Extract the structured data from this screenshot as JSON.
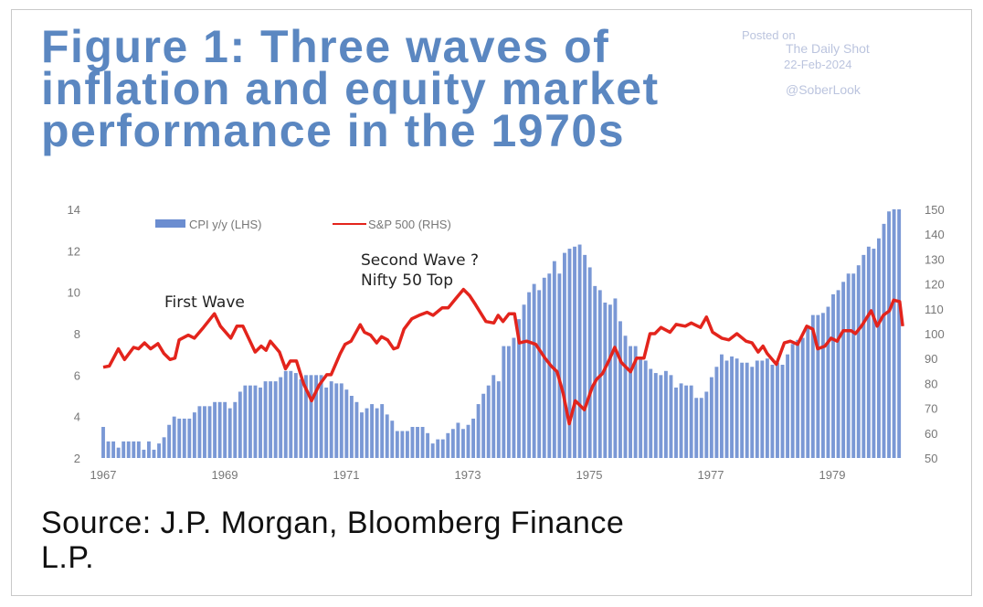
{
  "title_lines": [
    "Figure 1: Three waves of",
    "inflation and equity market",
    "performance in the 1970s"
  ],
  "watermark": {
    "line1": "Posted on",
    "line2": "The Daily Shot",
    "line3": "22-Feb-2024",
    "line4": "@SoberLook"
  },
  "source_lines": [
    "Source: J.P. Morgan, Bloomberg Finance",
    "L.P."
  ],
  "colors": {
    "title": "#5b87c1",
    "cpi_bar": "#6b8dd0",
    "sp500_line": "#e3241c"
  },
  "chart_data": {
    "type": "bar+line",
    "legend": [
      "CPI y/y (LHS)",
      "S&P 500 (RHS)"
    ],
    "legend_position": "top-center",
    "annotations": [
      "First Wave",
      "Second Wave ?",
      "Nifty 50 Top"
    ],
    "x_ticks": [
      "1967",
      "1969",
      "1971",
      "1973",
      "1975",
      "1977",
      "1979"
    ],
    "x_range": [
      1967,
      1980.2
    ],
    "y_left_ticks": [
      "2",
      "4",
      "6",
      "8",
      "10",
      "12",
      "14"
    ],
    "y_left_range": [
      2,
      14
    ],
    "y_right_ticks": [
      "50",
      "60",
      "70",
      "80",
      "90",
      "100",
      "110",
      "120",
      "130",
      "140",
      "150"
    ],
    "y_right_range": [
      50,
      150
    ],
    "cpi": {
      "name": "CPI y/y (LHS)",
      "x_start": 1967.0,
      "x_end": 1980.1,
      "values": [
        3.5,
        2.8,
        2.8,
        2.5,
        2.8,
        2.8,
        2.8,
        2.8,
        2.4,
        2.8,
        2.4,
        2.7,
        3.0,
        3.6,
        4.0,
        3.9,
        3.9,
        3.9,
        4.2,
        4.5,
        4.5,
        4.5,
        4.7,
        4.7,
        4.7,
        4.4,
        4.7,
        5.2,
        5.5,
        5.5,
        5.5,
        5.4,
        5.7,
        5.7,
        5.7,
        5.9,
        6.2,
        6.2,
        6.1,
        5.8,
        6.0,
        6.0,
        6.0,
        6.0,
        5.4,
        5.7,
        5.6,
        5.6,
        5.3,
        5.0,
        4.7,
        4.2,
        4.4,
        4.6,
        4.4,
        4.6,
        4.1,
        3.8,
        3.3,
        3.3,
        3.3,
        3.5,
        3.5,
        3.5,
        3.2,
        2.7,
        2.9,
        2.9,
        3.2,
        3.4,
        3.7,
        3.4,
        3.6,
        3.9,
        4.6,
        5.1,
        5.5,
        6.0,
        5.7,
        7.4,
        7.4,
        7.8,
        8.7,
        9.4,
        10.0,
        10.4,
        10.1,
        10.7,
        10.9,
        11.5,
        10.9,
        11.9,
        12.1,
        12.2,
        12.3,
        11.8,
        11.2,
        10.3,
        10.1,
        9.5,
        9.4,
        9.7,
        8.6,
        7.9,
        7.4,
        7.4,
        6.8,
        6.7,
        6.3,
        6.1,
        6.0,
        6.2,
        6.0,
        5.4,
        5.6,
        5.5,
        5.5,
        4.9,
        4.9,
        5.2,
        5.9,
        6.4,
        7.0,
        6.7,
        6.9,
        6.8,
        6.6,
        6.6,
        6.4,
        6.7,
        6.7,
        6.8,
        6.5,
        6.6,
        6.5,
        7.0,
        7.5,
        7.7,
        7.8,
        8.4,
        8.9,
        8.9,
        9.0,
        9.3,
        9.9,
        10.1,
        10.5,
        10.9,
        10.9,
        11.3,
        11.8,
        12.2,
        12.1,
        12.6,
        13.3,
        13.9,
        14.0,
        14.0
      ]
    },
    "sp500": {
      "name": "S&P 500 (RHS)",
      "x": [
        1967.0,
        1967.1,
        1967.25,
        1967.35,
        1967.5,
        1967.58,
        1967.68,
        1967.78,
        1967.9,
        1968.0,
        1968.1,
        1968.18,
        1968.25,
        1968.4,
        1968.5,
        1968.65,
        1968.83,
        1968.93,
        1969.1,
        1969.2,
        1969.3,
        1969.5,
        1969.6,
        1969.68,
        1969.75,
        1969.9,
        1970.0,
        1970.08,
        1970.18,
        1970.3,
        1970.43,
        1970.55,
        1970.68,
        1970.75,
        1970.9,
        1970.98,
        1971.08,
        1971.23,
        1971.3,
        1971.4,
        1971.5,
        1971.58,
        1971.68,
        1971.78,
        1971.85,
        1971.95,
        1972.08,
        1972.2,
        1972.33,
        1972.43,
        1972.58,
        1972.68,
        1972.8,
        1972.93,
        1973.03,
        1973.13,
        1973.3,
        1973.43,
        1973.5,
        1973.58,
        1973.68,
        1973.7,
        1973.77,
        1973.85,
        1973.97,
        1974.12,
        1974.27,
        1974.37,
        1974.47,
        1974.57,
        1974.67,
        1974.77,
        1974.92,
        1975.05,
        1975.12,
        1975.22,
        1975.32,
        1975.42,
        1975.53,
        1975.68,
        1975.78,
        1975.9,
        1976.0,
        1976.08,
        1976.18,
        1976.33,
        1976.43,
        1976.58,
        1976.68,
        1976.83,
        1976.93,
        1977.03,
        1977.18,
        1977.3,
        1977.43,
        1977.58,
        1977.68,
        1977.78,
        1977.86,
        1977.93,
        1978.08,
        1978.21,
        1978.31,
        1978.43,
        1978.58,
        1978.68,
        1978.76,
        1978.88,
        1978.98,
        1979.08,
        1979.18,
        1979.31,
        1979.38,
        1979.48,
        1979.64,
        1979.74,
        1979.84,
        1979.94,
        1980.01,
        1980.11,
        1980.16
      ],
      "y": [
        86.5,
        87,
        93.9,
        89.6,
        94.5,
        93.9,
        96.3,
        93.9,
        96,
        92,
        89.6,
        90.2,
        97.5,
        99.4,
        98.2,
        102.5,
        108,
        103,
        98.2,
        103,
        103,
        92.6,
        95,
        93.3,
        97,
        92.6,
        85.9,
        89,
        89,
        79.8,
        73,
        79.2,
        83.5,
        83.5,
        92,
        95.7,
        97,
        103.6,
        100.6,
        99.4,
        96.3,
        98.8,
        97.5,
        93.9,
        94.5,
        101.8,
        106,
        107.4,
        108.6,
        107.4,
        110.4,
        110.4,
        114,
        117.8,
        115.3,
        111.6,
        104.9,
        104.3,
        107.4,
        104.9,
        108,
        108,
        108,
        96.3,
        97,
        95.7,
        90.2,
        87.1,
        84.7,
        76.1,
        63.8,
        73,
        69.4,
        78.5,
        81.6,
        84,
        89,
        94.5,
        88.4,
        84.7,
        90.2,
        90.2,
        100,
        100,
        102.5,
        100.6,
        103.7,
        103,
        104.3,
        102.5,
        106.7,
        100.6,
        98.2,
        97.5,
        100,
        97,
        96.3,
        92.6,
        95,
        92,
        87.7,
        96.3,
        97,
        95.7,
        103,
        101.8,
        93.9,
        95,
        98.2,
        97,
        101.2,
        101.2,
        100,
        103,
        109.2,
        103,
        107.4,
        109.2,
        113.5,
        112.9,
        103
      ]
    }
  }
}
